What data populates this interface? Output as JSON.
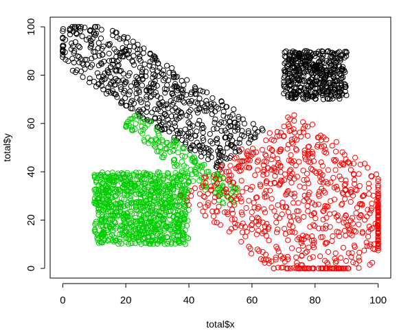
{
  "chart_data": {
    "type": "scatter",
    "title": "",
    "xlabel": "total$x",
    "ylabel": "total$y",
    "xlim": [
      -4,
      104
    ],
    "ylim": [
      -4,
      104
    ],
    "x_ticks": [
      0,
      20,
      40,
      60,
      80,
      100
    ],
    "y_ticks": [
      0,
      20,
      40,
      60,
      80,
      100
    ],
    "x_tick_labels": [
      "0",
      "20",
      "40",
      "60",
      "80",
      "100"
    ],
    "y_tick_labels": [
      "0",
      "20",
      "40",
      "60",
      "80",
      "100"
    ],
    "marker": "open-circle",
    "grid": false,
    "legend": "none",
    "clusters": [
      {
        "color": "#000000",
        "shape": "diagonal-band",
        "from": [
          0,
          99
        ],
        "to": [
          57,
          49
        ],
        "half_width": 11,
        "count": 600
      },
      {
        "color": "#000000",
        "shape": "rect",
        "x_range": [
          70,
          90
        ],
        "y_range": [
          70,
          90
        ],
        "count": 450
      },
      {
        "color": "#00CD00",
        "shape": "rect",
        "x_range": [
          10,
          40
        ],
        "y_range": [
          10,
          40
        ],
        "count": 900
      },
      {
        "color": "#00CD00",
        "shape": "diagonal-band",
        "from": [
          21,
          62
        ],
        "to": [
          55,
          28
        ],
        "half_width": 4,
        "count": 170
      },
      {
        "color": "#FF0000",
        "shape": "diagonal-band",
        "from": [
          55,
          48
        ],
        "to": [
          99,
          3
        ],
        "half_width": 26,
        "count": 750
      }
    ]
  }
}
